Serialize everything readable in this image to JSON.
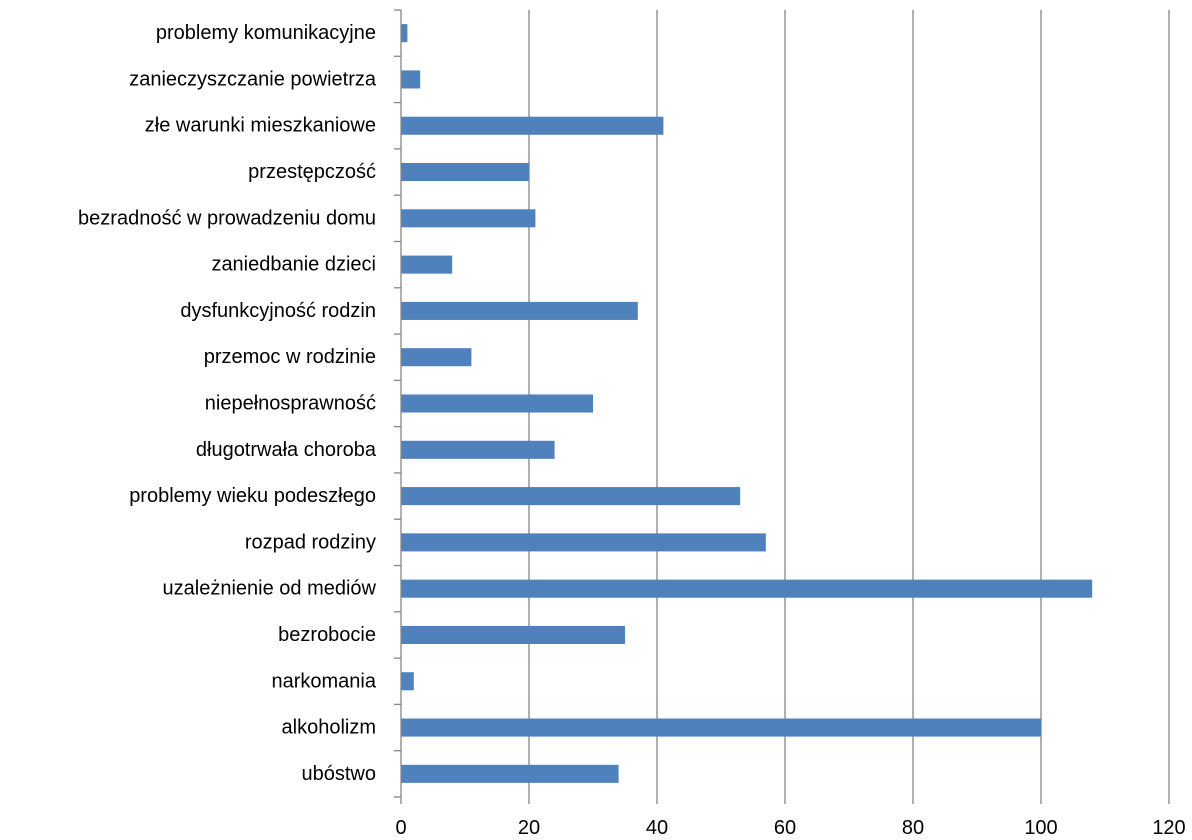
{
  "chart_data": {
    "type": "bar",
    "orientation": "horizontal",
    "title": "",
    "xlabel": "",
    "ylabel": "",
    "categories": [
      "ubóstwo",
      "alkoholizm",
      "narkomania",
      "bezrobocie",
      "uzależnienie od mediów",
      "rozpad rodziny",
      "problemy wieku podeszłego",
      "długotrwała choroba",
      "niepełnosprawność",
      "przemoc w rodzinie",
      "dysfunkcyjność rodzin",
      "zaniedbanie dzieci",
      "bezradność w prowadzeniu domu",
      "przestępczość",
      "złe warunki mieszkaniowe",
      "zanieczyszczanie powietrza",
      "problemy komunikacyjne"
    ],
    "values": [
      34,
      100,
      2,
      35,
      108,
      57,
      53,
      24,
      30,
      11,
      37,
      8,
      21,
      20,
      41,
      3,
      1
    ],
    "xlim": [
      0,
      120
    ],
    "xticks": [
      0,
      20,
      40,
      60,
      80,
      100,
      120
    ],
    "grid": true,
    "legend": "none",
    "bar_color": "#4f81bd"
  }
}
